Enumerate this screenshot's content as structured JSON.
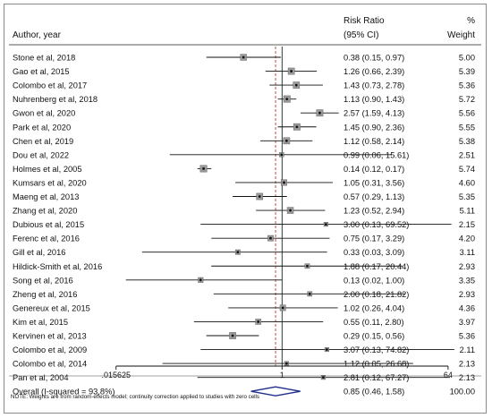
{
  "header": {
    "author_col": "Author, year",
    "rr_col_line1": "Risk Ratio",
    "rr_col_line2": "(95% CI)",
    "weight_col_line1": "%",
    "weight_col_line2": "Weight"
  },
  "footnote": "NOTE: Weights are from random-effects model; continuity correction applied to studies with zero cells",
  "chart_data": {
    "type": "forest",
    "x_scale": "log",
    "x_ticks": [
      {
        "value": 0.015625,
        "label": ".015625"
      },
      {
        "value": 1,
        "label": "1"
      },
      {
        "value": 64,
        "label": "64"
      }
    ],
    "null_line": 1,
    "overall_line": 0.85,
    "studies": [
      {
        "label": "Stone et al, 2018",
        "rr": 0.38,
        "lo": 0.15,
        "hi": 0.97,
        "ci_text": "0.38 (0.15, 0.97)",
        "weight": "5.00"
      },
      {
        "label": "Gao et al, 2015",
        "rr": 1.26,
        "lo": 0.66,
        "hi": 2.39,
        "ci_text": "1.26 (0.66, 2.39)",
        "weight": "5.39"
      },
      {
        "label": "Colombo et al, 2017",
        "rr": 1.43,
        "lo": 0.73,
        "hi": 2.78,
        "ci_text": "1.43 (0.73, 2.78)",
        "weight": "5.36"
      },
      {
        "label": "Nuhrenberg et al, 2018",
        "rr": 1.13,
        "lo": 0.9,
        "hi": 1.43,
        "ci_text": "1.13 (0.90, 1.43)",
        "weight": "5.72"
      },
      {
        "label": "Gwon et al, 2020",
        "rr": 2.57,
        "lo": 1.59,
        "hi": 4.13,
        "ci_text": "2.57 (1.59, 4.13)",
        "weight": "5.56"
      },
      {
        "label": "Park et al, 2020",
        "rr": 1.45,
        "lo": 0.9,
        "hi": 2.36,
        "ci_text": "1.45 (0.90, 2.36)",
        "weight": "5.55"
      },
      {
        "label": "Chen et al, 2019",
        "rr": 1.12,
        "lo": 0.58,
        "hi": 2.14,
        "ci_text": "1.12 (0.58, 2.14)",
        "weight": "5.38"
      },
      {
        "label": "Dou et al, 2022",
        "rr": 0.99,
        "lo": 0.06,
        "hi": 15.61,
        "ci_text": "0.99 (0.06, 15.61)",
        "weight": "2.51"
      },
      {
        "label": "Holmes et al, 2005",
        "rr": 0.14,
        "lo": 0.12,
        "hi": 0.17,
        "ci_text": "0.14 (0.12, 0.17)",
        "weight": "5.74"
      },
      {
        "label": "Kumsars et al, 2020",
        "rr": 1.05,
        "lo": 0.31,
        "hi": 3.56,
        "ci_text": "1.05 (0.31, 3.56)",
        "weight": "4.60"
      },
      {
        "label": "Maeng et al, 2013",
        "rr": 0.57,
        "lo": 0.29,
        "hi": 1.13,
        "ci_text": "0.57 (0.29, 1.13)",
        "weight": "5.35"
      },
      {
        "label": "Zhang et al, 2020",
        "rr": 1.23,
        "lo": 0.52,
        "hi": 2.94,
        "ci_text": "1.23 (0.52, 2.94)",
        "weight": "5.11"
      },
      {
        "label": "Dubious et al, 2015",
        "rr": 3.0,
        "lo": 0.13,
        "hi": 69.52,
        "ci_text": "3.00 (0.13, 69.52)",
        "weight": "2.15"
      },
      {
        "label": "Ferenc et al, 2016",
        "rr": 0.75,
        "lo": 0.17,
        "hi": 3.29,
        "ci_text": "0.75 (0.17, 3.29)",
        "weight": "4.20"
      },
      {
        "label": "Gill et al, 2016",
        "rr": 0.33,
        "lo": 0.03,
        "hi": 3.09,
        "ci_text": "0.33 (0.03, 3.09)",
        "weight": "3.11"
      },
      {
        "label": "Hildick-Smith et al, 2016",
        "rr": 1.88,
        "lo": 0.17,
        "hi": 20.44,
        "ci_text": "1.88 (0.17, 20.44)",
        "weight": "2.93"
      },
      {
        "label": "Song et al, 2016",
        "rr": 0.13,
        "lo": 0.02,
        "hi": 1.0,
        "ci_text": "0.13 (0.02, 1.00)",
        "weight": "3.35"
      },
      {
        "label": "Zheng et al, 2016",
        "rr": 2.0,
        "lo": 0.18,
        "hi": 21.82,
        "ci_text": "2.00 (0.18, 21.82)",
        "weight": "2.93"
      },
      {
        "label": "Genereux et al, 2015",
        "rr": 1.02,
        "lo": 0.26,
        "hi": 4.04,
        "ci_text": "1.02 (0.26, 4.04)",
        "weight": "4.36"
      },
      {
        "label": "Kim et al, 2015",
        "rr": 0.55,
        "lo": 0.11,
        "hi": 2.8,
        "ci_text": "0.55 (0.11, 2.80)",
        "weight": "3.97"
      },
      {
        "label": "Kervinen et al, 2013",
        "rr": 0.29,
        "lo": 0.15,
        "hi": 0.56,
        "ci_text": "0.29 (0.15, 0.56)",
        "weight": "5.36"
      },
      {
        "label": "Colombo et al, 2009",
        "rr": 3.07,
        "lo": 0.13,
        "hi": 74.82,
        "ci_text": "3.07 (0.13, 74.82)",
        "weight": "2.11"
      },
      {
        "label": "Colombo et al, 2014",
        "rr": 1.12,
        "lo": 0.05,
        "hi": 26.68,
        "ci_text": "1.12 (0.05, 26.68)",
        "weight": "2.13"
      },
      {
        "label": "Pan et al, 2004",
        "rr": 2.81,
        "lo": 0.12,
        "hi": 67.27,
        "ci_text": "2.81 (0.12, 67.27)",
        "weight": "2.13"
      }
    ],
    "overall": {
      "label": "Overall (I-squared = 93.8%)",
      "rr": 0.85,
      "lo": 0.46,
      "hi": 1.58,
      "ci_text": "0.85 (0.46, 1.58)",
      "weight": "100.00"
    }
  }
}
